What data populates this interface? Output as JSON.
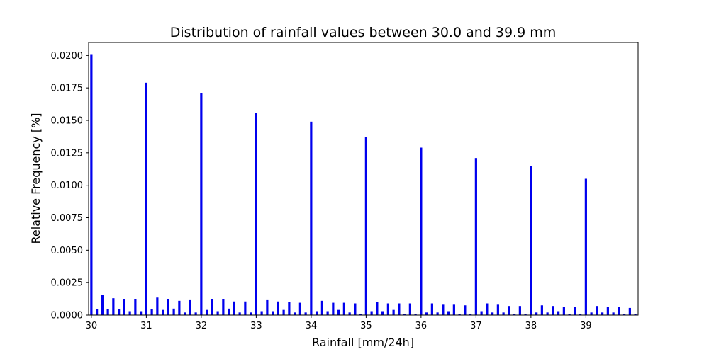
{
  "chart_data": {
    "type": "bar",
    "title": "Distribution of rainfall values between 30.0 and 39.9 mm",
    "xlabel": "Rainfall [mm/24h]",
    "ylabel": "Relative Frequency [%]",
    "xlim": [
      29.95,
      39.95
    ],
    "ylim": [
      0,
      0.021
    ],
    "xticks": [
      "30",
      "31",
      "32",
      "33",
      "34",
      "35",
      "36",
      "37",
      "38",
      "39"
    ],
    "yticks": [
      "0.0000",
      "0.0025",
      "0.0050",
      "0.0075",
      "0.0100",
      "0.0125",
      "0.0150",
      "0.0175",
      "0.0200"
    ],
    "grid": false,
    "bar_color": "#0000ee",
    "series": [
      {
        "x": [
          30.0,
          30.1,
          30.2,
          30.3,
          30.4,
          30.5,
          30.6,
          30.7,
          30.8,
          30.9,
          31.0,
          31.1,
          31.2,
          31.3,
          31.4,
          31.5,
          31.6,
          31.7,
          31.8,
          31.9,
          32.0,
          32.1,
          32.2,
          32.3,
          32.4,
          32.5,
          32.6,
          32.7,
          32.8,
          32.9,
          33.0,
          33.1,
          33.2,
          33.3,
          33.4,
          33.5,
          33.6,
          33.7,
          33.8,
          33.9,
          34.0,
          34.1,
          34.2,
          34.3,
          34.4,
          34.5,
          34.6,
          34.7,
          34.8,
          34.9,
          35.0,
          35.1,
          35.2,
          35.3,
          35.4,
          35.5,
          35.6,
          35.7,
          35.8,
          35.9,
          36.0,
          36.1,
          36.2,
          36.3,
          36.4,
          36.5,
          36.6,
          36.7,
          36.8,
          36.9,
          37.0,
          37.1,
          37.2,
          37.3,
          37.4,
          37.5,
          37.6,
          37.7,
          37.8,
          37.9,
          38.0,
          38.1,
          38.2,
          38.3,
          38.4,
          38.5,
          38.6,
          38.7,
          38.8,
          38.9,
          39.0,
          39.1,
          39.2,
          39.3,
          39.4,
          39.5,
          39.6,
          39.7,
          39.8,
          39.9
        ],
        "values": [
          0.0201,
          0.00045,
          0.00155,
          0.00045,
          0.0013,
          0.00045,
          0.00125,
          0.0003,
          0.0012,
          0.0003,
          0.0179,
          0.00045,
          0.00135,
          0.0004,
          0.0012,
          0.0005,
          0.0011,
          0.0002,
          0.00115,
          0.0002,
          0.0171,
          0.0004,
          0.00125,
          0.0003,
          0.0012,
          0.0005,
          0.00105,
          0.0002,
          0.00105,
          0.0002,
          0.0156,
          0.0003,
          0.00115,
          0.0003,
          0.00105,
          0.0004,
          0.001,
          0.0002,
          0.00095,
          0.0002,
          0.0149,
          0.0003,
          0.0011,
          0.0003,
          0.00095,
          0.0004,
          0.00095,
          0.0002,
          0.0009,
          0.0001,
          0.0137,
          0.0003,
          0.001,
          0.0003,
          0.0009,
          0.0004,
          0.0009,
          0.0001,
          0.0009,
          0.0001,
          0.0129,
          0.0002,
          0.0009,
          0.0002,
          0.0008,
          0.0003,
          0.0008,
          0.0001,
          0.00075,
          0.0001,
          0.0121,
          0.0003,
          0.0009,
          0.0002,
          0.0008,
          0.0002,
          0.0007,
          0.0001,
          0.0007,
          0.0001,
          0.0115,
          0.0002,
          0.00075,
          0.0002,
          0.0007,
          0.0003,
          0.00065,
          0.0001,
          0.00065,
          0.0001,
          0.0105,
          0.0002,
          0.0007,
          0.0002,
          0.00065,
          0.0002,
          0.0006,
          0.0001,
          0.00055,
          0.0001
        ]
      }
    ]
  }
}
